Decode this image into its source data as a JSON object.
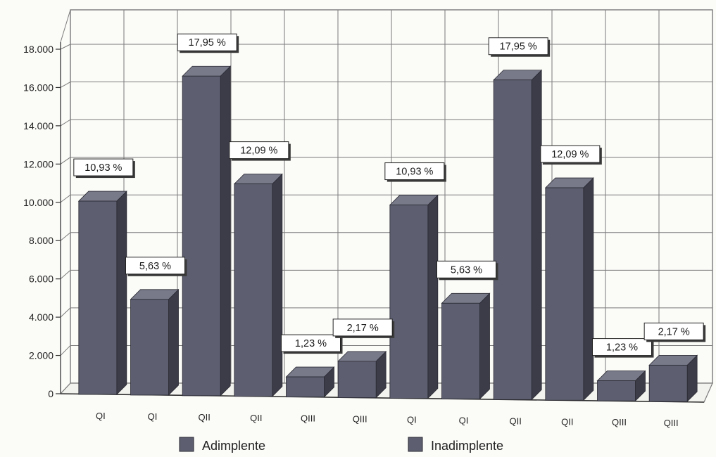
{
  "chart_data": {
    "type": "bar",
    "title": "",
    "xlabel": "",
    "ylabel": "",
    "ylim": [
      0,
      18000
    ],
    "yticks": [
      "0",
      "2.000",
      "4.000",
      "6.000",
      "8.000",
      "10.000",
      "12.000",
      "14.000",
      "16.000",
      "18.000"
    ],
    "ytick_values": [
      0,
      2000,
      4000,
      6000,
      8000,
      10000,
      12000,
      14000,
      16000,
      18000
    ],
    "categories": [
      "QI",
      "QI",
      "QII",
      "QII",
      "QIII",
      "QIII",
      "QI",
      "QI",
      "QII",
      "QII",
      "QIII",
      "QIII"
    ],
    "values": [
      10100,
      5000,
      16700,
      11100,
      1050,
      1900,
      10100,
      5000,
      16700,
      11100,
      1050,
      1900
    ],
    "data_labels": [
      "10,93 %",
      "5,63 %",
      "17,95 %",
      "12,09 %",
      "1,23 %",
      "2,17 %",
      "10,93 %",
      "5,63 %",
      "17,95 %",
      "12,09 %",
      "1,23 %",
      "2,17 %"
    ],
    "grid": true,
    "legend": {
      "placement": "bottom",
      "entries": [
        "Adimplente",
        "Inadimplente"
      ]
    },
    "colors": {
      "bar_front": "#5d5f70",
      "bar_side": "#3b3c48",
      "bar_top": "#787a8a",
      "grid": "#7a7a7a",
      "background": "#fbfbf8"
    }
  }
}
